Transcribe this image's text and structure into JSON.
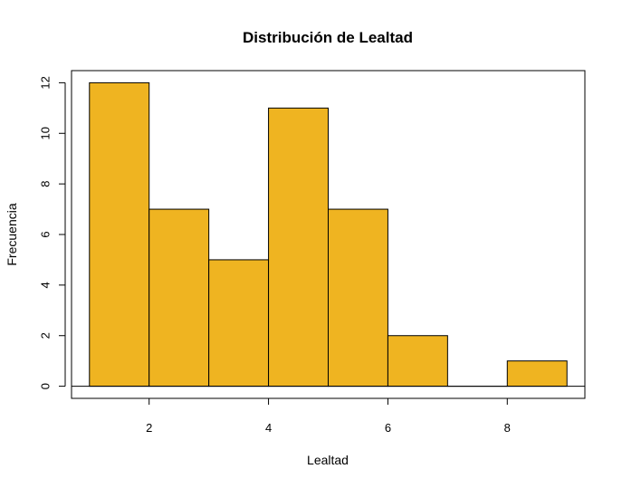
{
  "chart_data": {
    "type": "bar",
    "subtype": "histogram",
    "title": "Distribución de Lealtad",
    "xlabel": "Lealtad",
    "ylabel": "Frecuencia",
    "bins": [
      {
        "from": 1,
        "to": 2,
        "count": 12
      },
      {
        "from": 2,
        "to": 3,
        "count": 7
      },
      {
        "from": 3,
        "to": 4,
        "count": 5
      },
      {
        "from": 4,
        "to": 5,
        "count": 11
      },
      {
        "from": 5,
        "to": 6,
        "count": 7
      },
      {
        "from": 6,
        "to": 7,
        "count": 2
      },
      {
        "from": 7,
        "to": 8,
        "count": 0
      },
      {
        "from": 8,
        "to": 9,
        "count": 1
      }
    ],
    "xlim": [
      0.7,
      9.3
    ],
    "ylim": [
      -0.48,
      12.48
    ],
    "xticks": [
      2,
      4,
      6,
      8
    ],
    "yticks": [
      0,
      2,
      4,
      6,
      8,
      10,
      12
    ],
    "grid": false,
    "bar_color": "#EFB421",
    "bar_edge_color": "#000000"
  }
}
